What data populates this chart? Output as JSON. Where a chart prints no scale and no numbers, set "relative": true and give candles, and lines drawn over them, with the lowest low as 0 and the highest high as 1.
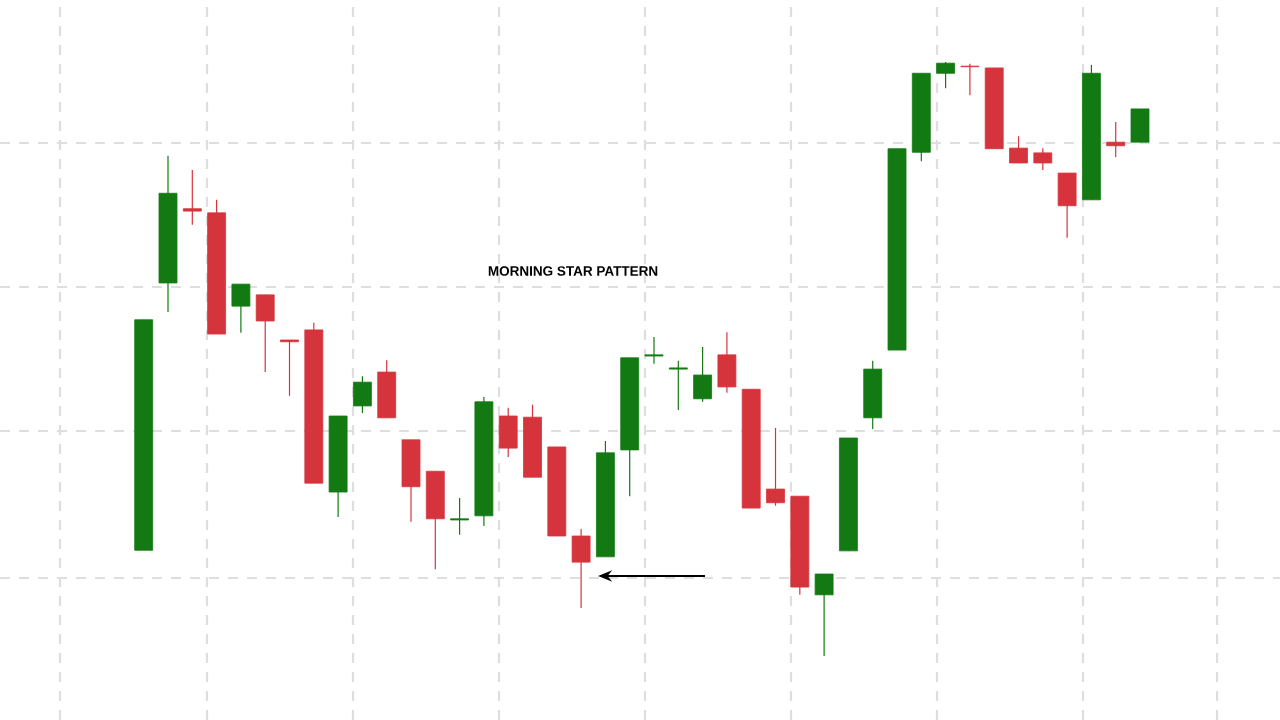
{
  "chart_data": {
    "type": "candlestick",
    "title": "MORNING STAR PATTERN",
    "relative": true,
    "grid": true,
    "categories": [
      null,
      null,
      null,
      null,
      null,
      null,
      null,
      null,
      null,
      null,
      null,
      null,
      null,
      null,
      null,
      null,
      null,
      null,
      null,
      null,
      null,
      null,
      null,
      null,
      null,
      null,
      null,
      null,
      null,
      null,
      null,
      null,
      null,
      null,
      null,
      null,
      null,
      null,
      null,
      null,
      null,
      null
    ],
    "ohlc": [
      [
        0.178,
        0.566,
        0.178,
        0.566
      ],
      [
        0.628,
        0.842,
        0.579,
        0.779
      ],
      [
        0.753,
        0.818,
        0.726,
        0.749
      ],
      [
        0.746,
        0.768,
        0.542,
        0.542
      ],
      [
        0.589,
        0.626,
        0.544,
        0.626
      ],
      [
        0.608,
        0.608,
        0.478,
        0.564
      ],
      [
        0.532,
        0.532,
        0.438,
        0.529
      ],
      [
        0.549,
        0.561,
        0.291,
        0.291
      ],
      [
        0.276,
        0.404,
        0.234,
        0.404
      ],
      [
        0.421,
        0.471,
        0.409,
        0.461
      ],
      [
        0.478,
        0.498,
        0.401,
        0.401
      ],
      [
        0.364,
        0.364,
        0.226,
        0.285
      ],
      [
        0.311,
        0.311,
        0.146,
        0.231
      ],
      [
        0.229,
        0.266,
        0.204,
        0.231
      ],
      [
        0.236,
        0.436,
        0.219,
        0.428
      ],
      [
        0.404,
        0.418,
        0.335,
        0.35
      ],
      [
        0.402,
        0.423,
        0.301,
        0.301
      ],
      [
        0.352,
        0.352,
        0.202,
        0.202
      ],
      [
        0.202,
        0.214,
        0.081,
        0.158
      ],
      [
        0.167,
        0.362,
        0.167,
        0.342
      ],
      [
        0.347,
        0.502,
        0.269,
        0.502
      ],
      [
        0.505,
        0.537,
        0.492,
        0.507
      ],
      [
        0.483,
        0.497,
        0.414,
        0.485
      ],
      [
        0.433,
        0.52,
        0.428,
        0.473
      ],
      [
        0.507,
        0.545,
        0.443,
        0.453
      ],
      [
        0.449,
        0.449,
        0.249,
        0.249
      ],
      [
        0.281,
        0.384,
        0.253,
        0.258
      ],
      [
        0.269,
        0.269,
        0.103,
        0.116
      ],
      [
        0.103,
        0.138,
        0.0,
        0.138
      ],
      [
        0.177,
        0.367,
        0.177,
        0.367
      ],
      [
        0.401,
        0.497,
        0.382,
        0.483
      ],
      [
        0.515,
        0.854,
        0.515,
        0.854
      ],
      [
        0.848,
        0.981,
        0.833,
        0.981
      ],
      [
        0.981,
        1.0,
        0.956,
        0.998
      ],
      [
        0.993,
        0.997,
        0.944,
        0.992
      ],
      [
        0.99,
        0.99,
        0.854,
        0.854
      ],
      [
        0.855,
        0.875,
        0.83,
        0.83
      ],
      [
        0.847,
        0.855,
        0.818,
        0.83
      ],
      [
        0.813,
        0.813,
        0.704,
        0.758
      ],
      [
        0.768,
        0.995,
        0.768,
        0.981
      ],
      [
        0.865,
        0.899,
        0.84,
        0.859
      ],
      [
        0.865,
        0.921,
        0.865,
        0.921
      ]
    ],
    "colors": [
      "#137a13",
      "#137a13",
      "#d6343c",
      "#d6343c",
      "#137a13",
      "#d6343c",
      "#d6343c",
      "#d6343c",
      "#137a13",
      "#137a13",
      "#d6343c",
      "#d6343c",
      "#d6343c",
      "#137a13",
      "#137a13",
      "#d6343c",
      "#d6343c",
      "#d6343c",
      "#d6343c",
      "#137a13",
      "#137a13",
      "#137a13",
      "#137a13",
      "#137a13",
      "#d6343c",
      "#d6343c",
      "#d6343c",
      "#d6343c",
      "#137a13",
      "#137a13",
      "#137a13",
      "#137a13",
      "#137a13",
      "#137a13",
      "#d6343c",
      "#d6343c",
      "#d6343c",
      "#d6343c",
      "#d6343c",
      "#137a13",
      "#d6343c",
      "#137a13"
    ]
  }
}
